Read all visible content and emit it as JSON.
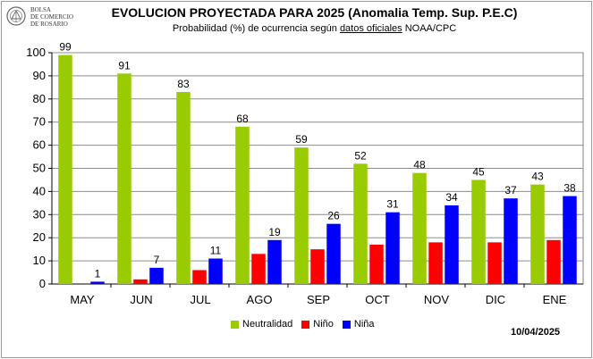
{
  "header": {
    "logo_line1": "BOLSA",
    "logo_line2": "DE COMERCIO",
    "logo_line3": "DE ROSARIO",
    "title": "EVOLUCION PROYECTADA PARA 2025 (Anomalia Temp. Sup. P.E.C)",
    "subtitle_pre": "Probabilidad (%) de ocurrencia según ",
    "subtitle_link": "datos oficiales",
    "subtitle_post": " NOAA/CPC"
  },
  "date": "10/04/2025",
  "chart_data": {
    "type": "bar",
    "categories": [
      "MAY",
      "JUN",
      "JUL",
      "AGO",
      "SEP",
      "OCT",
      "NOV",
      "DIC",
      "ENE"
    ],
    "series": [
      {
        "name": "Neutralidad",
        "color": "#99cc00",
        "values": [
          99,
          91,
          83,
          68,
          59,
          52,
          48,
          45,
          43
        ],
        "labeled": true
      },
      {
        "name": "Niño",
        "color": "#ff0000",
        "values": [
          0,
          2,
          6,
          13,
          15,
          17,
          18,
          18,
          19
        ],
        "labeled": false
      },
      {
        "name": "Niña",
        "color": "#0000ff",
        "values": [
          1,
          7,
          11,
          19,
          26,
          31,
          34,
          37,
          38
        ],
        "labeled": true
      }
    ],
    "ylim": [
      0,
      100
    ],
    "yticks": [
      0,
      10,
      20,
      30,
      40,
      50,
      60,
      70,
      80,
      90,
      100
    ],
    "grid": true,
    "legend": "bottom"
  }
}
